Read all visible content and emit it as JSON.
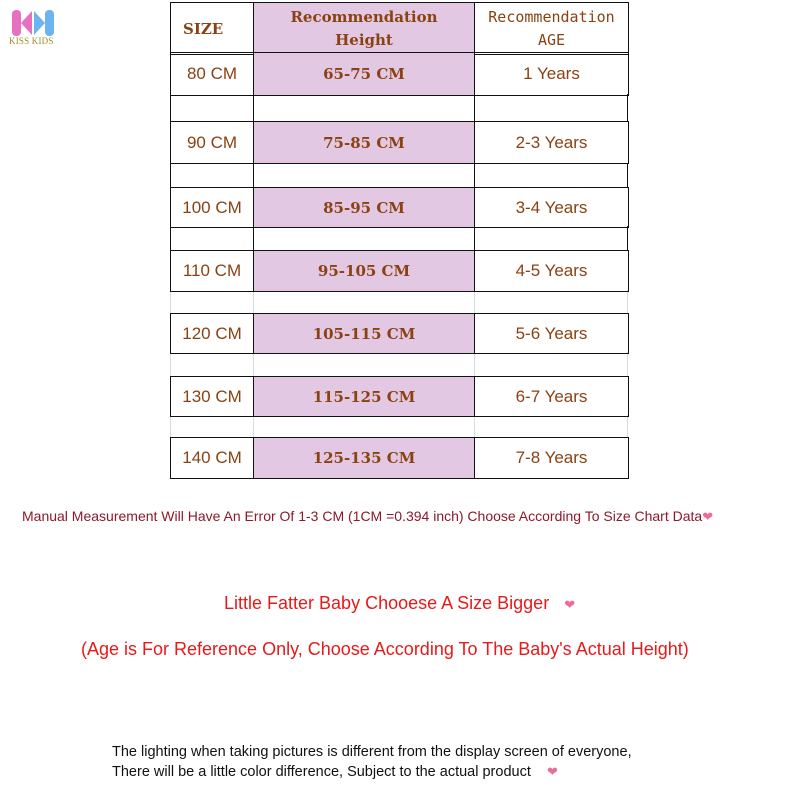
{
  "brand": {
    "logo_text": "KISS KIDS",
    "colors": {
      "pink": "#e870c0",
      "blue": "#6cb4f0"
    }
  },
  "table": {
    "headers": [
      "SIZE",
      "Recommendation\nHeight",
      "Recommendation\nAGE"
    ],
    "rows": [
      {
        "size": "80 CM",
        "height": "65-75 CM",
        "age": "1 Years"
      },
      {
        "size": "90 CM",
        "height": "75-85 CM",
        "age": "2-3 Years"
      },
      {
        "size": "100 CM",
        "height": "85-95 CM",
        "age": "3-4 Years"
      },
      {
        "size": "110 CM",
        "height": "95-105 CM",
        "age": "4-5 Years"
      },
      {
        "size": "120 CM",
        "height": "105-115 CM",
        "age": "5-6 Years"
      },
      {
        "size": "130 CM",
        "height": "115-125 CM",
        "age": "6-7 Years"
      },
      {
        "size": "140 CM",
        "height": "125-135 CM",
        "age": "7-8 Years"
      }
    ],
    "colors": {
      "text": "#8a4212",
      "height_bg": "#e3c8e3"
    }
  },
  "notes": {
    "measurement": "Manual Measurement Will Have An Error Of 1-3 CM   (1CM =0.394 inch) Choose According To Size Chart Data",
    "fatter": "Little Fatter Baby Chooese A Size Bigger",
    "age_ref": "(Age is For Reference Only, Choose According To The Baby's Actual Height)",
    "lighting_1": "The lighting when taking pictures is different from the display screen of everyone,",
    "lighting_2": "There will be a little color difference, Subject to the actual product",
    "heart_icon": "heart-icon"
  }
}
